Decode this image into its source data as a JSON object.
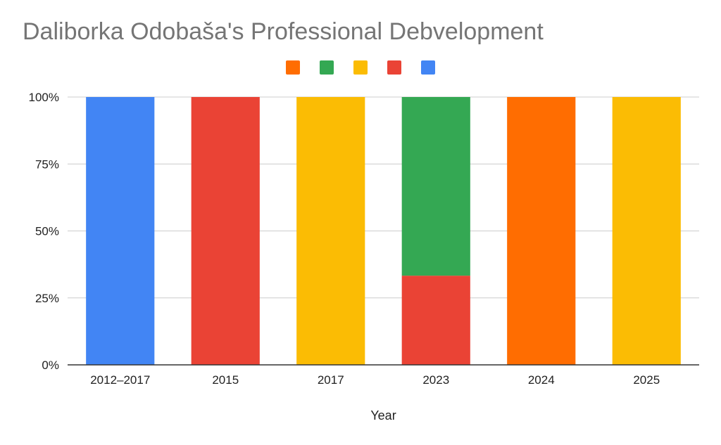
{
  "chart_data": {
    "type": "bar",
    "stacked": true,
    "percent": true,
    "title": "Daliborka Odobaša's Professional Debvelopment",
    "xlabel": "Year",
    "ylabel": "",
    "categories": [
      "2012–2017",
      "2015",
      "2017",
      "2023",
      "2024",
      "2025"
    ],
    "y_ticks": [
      "0%",
      "25%",
      "50%",
      "75%",
      "100%"
    ],
    "ylim": [
      0,
      100
    ],
    "grid": true,
    "legend_position": "top",
    "series": [
      {
        "color": "#ff6d01",
        "values": [
          0,
          0,
          0,
          0,
          100,
          0
        ]
      },
      {
        "color": "#34a853",
        "values": [
          0,
          0,
          0,
          66.7,
          0,
          0
        ]
      },
      {
        "color": "#fbbc04",
        "values": [
          0,
          0,
          100,
          0,
          0,
          100
        ]
      },
      {
        "color": "#ea4335",
        "values": [
          0,
          100,
          0,
          33.3,
          0,
          0
        ]
      },
      {
        "color": "#4285f4",
        "values": [
          100,
          0,
          0,
          0,
          0,
          0
        ]
      }
    ],
    "stack_order_bottom_to_top": [
      4,
      3,
      2,
      1,
      0
    ]
  }
}
